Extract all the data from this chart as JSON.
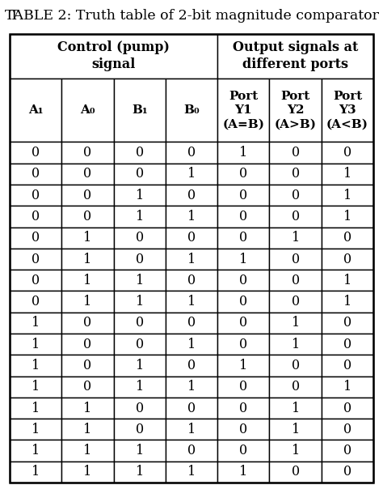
{
  "title": "TABLE 2: Truth table of 2-bit magnitude comparator",
  "header1_left": "Control (pump)\nsignal",
  "header1_right": "Output signals at\ndifferent ports",
  "col_header2_labels": [
    "A₁",
    "A₀",
    "B₁",
    "B₀",
    "Port\nY1\n(A=B)",
    "Port\nY2\n(A>B)",
    "Port\nY3\n(A<B)"
  ],
  "data_rows": [
    [
      0,
      0,
      0,
      0,
      1,
      0,
      0
    ],
    [
      0,
      0,
      0,
      1,
      0,
      0,
      1
    ],
    [
      0,
      0,
      1,
      0,
      0,
      0,
      1
    ],
    [
      0,
      0,
      1,
      1,
      0,
      0,
      1
    ],
    [
      0,
      1,
      0,
      0,
      0,
      1,
      0
    ],
    [
      0,
      1,
      0,
      1,
      1,
      0,
      0
    ],
    [
      0,
      1,
      1,
      0,
      0,
      0,
      1
    ],
    [
      0,
      1,
      1,
      1,
      0,
      0,
      1
    ],
    [
      1,
      0,
      0,
      0,
      0,
      1,
      0
    ],
    [
      1,
      0,
      0,
      1,
      0,
      1,
      0
    ],
    [
      1,
      0,
      1,
      0,
      1,
      0,
      0
    ],
    [
      1,
      0,
      1,
      1,
      0,
      0,
      1
    ],
    [
      1,
      1,
      0,
      0,
      0,
      1,
      0
    ],
    [
      1,
      1,
      0,
      1,
      0,
      1,
      0
    ],
    [
      1,
      1,
      1,
      0,
      0,
      1,
      0
    ],
    [
      1,
      1,
      1,
      1,
      1,
      0,
      0
    ]
  ],
  "bg_color": "#ffffff",
  "border_color": "#000000",
  "text_color": "#000000",
  "title_fontsize": 12.5,
  "header1_fontsize": 11.5,
  "header2_fontsize": 11.0,
  "cell_fontsize": 11.5,
  "n_cols": 7,
  "n_data_rows": 16
}
